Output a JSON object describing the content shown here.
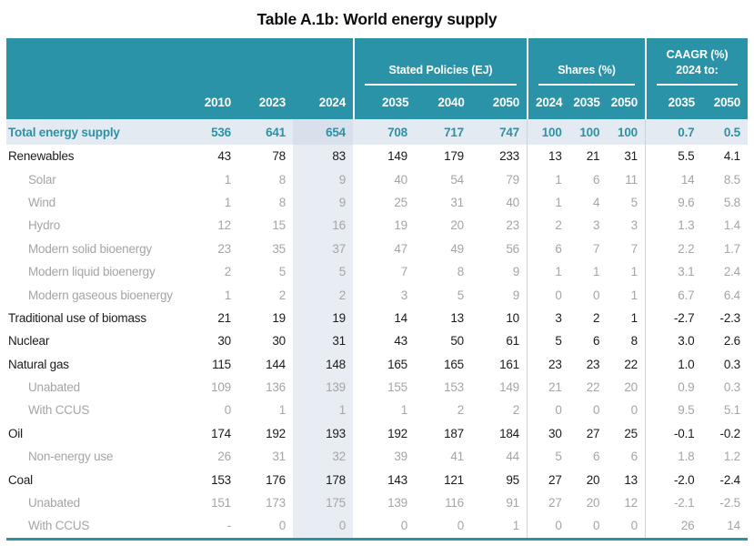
{
  "title": "Table A.1b: World energy supply",
  "colors": {
    "header_teal": "#2a93a8",
    "total_row_bg": "#e4eaf2",
    "col_2024_shade": "#e8ecf2",
    "sub_row_text": "#a5a5a5",
    "main_text": "#1b1b1b",
    "divider_gray": "#ccd3da"
  },
  "table": {
    "groups": {
      "stated_policies": "Stated Policies (EJ)",
      "shares": "Shares (%)",
      "caagr_line1": "CAAGR (%)",
      "caagr_line2": "2024 to:"
    },
    "columns": [
      "2010",
      "2023",
      "2024",
      "2035",
      "2040",
      "2050",
      "2024",
      "2035",
      "2050",
      "2035",
      "2050"
    ],
    "rows": [
      {
        "label": "Total energy supply",
        "style": "total",
        "values": [
          "536",
          "641",
          "654",
          "708",
          "717",
          "747",
          "100",
          "100",
          "100",
          "0.7",
          "0.5"
        ]
      },
      {
        "label": "Renewables",
        "style": "main",
        "values": [
          "43",
          "78",
          "83",
          "149",
          "179",
          "233",
          "13",
          "21",
          "31",
          "5.5",
          "4.1"
        ]
      },
      {
        "label": "Solar",
        "style": "sub",
        "values": [
          "1",
          "8",
          "9",
          "40",
          "54",
          "79",
          "1",
          "6",
          "11",
          "14",
          "8.5"
        ]
      },
      {
        "label": "Wind",
        "style": "sub",
        "values": [
          "1",
          "8",
          "9",
          "25",
          "31",
          "40",
          "1",
          "4",
          "5",
          "9.6",
          "5.8"
        ]
      },
      {
        "label": "Hydro",
        "style": "sub",
        "values": [
          "12",
          "15",
          "16",
          "19",
          "20",
          "23",
          "2",
          "3",
          "3",
          "1.3",
          "1.4"
        ]
      },
      {
        "label": "Modern solid bioenergy",
        "style": "sub",
        "values": [
          "23",
          "35",
          "37",
          "47",
          "49",
          "56",
          "6",
          "7",
          "7",
          "2.2",
          "1.7"
        ]
      },
      {
        "label": "Modern liquid bioenergy",
        "style": "sub",
        "values": [
          "2",
          "5",
          "5",
          "7",
          "8",
          "9",
          "1",
          "1",
          "1",
          "3.1",
          "2.4"
        ]
      },
      {
        "label": "Modern gaseous bioenergy",
        "style": "sub",
        "values": [
          "1",
          "2",
          "2",
          "3",
          "5",
          "9",
          "0",
          "0",
          "1",
          "6.7",
          "6.4"
        ]
      },
      {
        "label": "Traditional use of biomass",
        "style": "main",
        "values": [
          "21",
          "19",
          "19",
          "14",
          "13",
          "10",
          "3",
          "2",
          "1",
          "-2.7",
          "-2.3"
        ]
      },
      {
        "label": "Nuclear",
        "style": "main",
        "values": [
          "30",
          "30",
          "31",
          "43",
          "50",
          "61",
          "5",
          "6",
          "8",
          "3.0",
          "2.6"
        ]
      },
      {
        "label": "Natural gas",
        "style": "main",
        "values": [
          "115",
          "144",
          "148",
          "165",
          "165",
          "161",
          "23",
          "23",
          "22",
          "1.0",
          "0.3"
        ]
      },
      {
        "label": "Unabated",
        "style": "sub",
        "values": [
          "109",
          "136",
          "139",
          "155",
          "153",
          "149",
          "21",
          "22",
          "20",
          "0.9",
          "0.3"
        ]
      },
      {
        "label": "With CCUS",
        "style": "sub",
        "values": [
          "0",
          "1",
          "1",
          "1",
          "2",
          "2",
          "0",
          "0",
          "0",
          "9.5",
          "5.1"
        ]
      },
      {
        "label": "Oil",
        "style": "main",
        "values": [
          "174",
          "192",
          "193",
          "192",
          "187",
          "184",
          "30",
          "27",
          "25",
          "-0.1",
          "-0.2"
        ]
      },
      {
        "label": "Non-energy use",
        "style": "sub",
        "values": [
          "26",
          "31",
          "32",
          "39",
          "41",
          "44",
          "5",
          "6",
          "6",
          "1.8",
          "1.2"
        ]
      },
      {
        "label": "Coal",
        "style": "main",
        "values": [
          "153",
          "176",
          "178",
          "143",
          "121",
          "95",
          "27",
          "20",
          "13",
          "-2.0",
          "-2.4"
        ]
      },
      {
        "label": "Unabated",
        "style": "sub",
        "values": [
          "151",
          "173",
          "175",
          "139",
          "116",
          "91",
          "27",
          "20",
          "12",
          "-2.1",
          "-2.5"
        ]
      },
      {
        "label": "With CCUS",
        "style": "sub",
        "values": [
          "-",
          "0",
          "0",
          "0",
          "0",
          "1",
          "0",
          "0",
          "0",
          "26",
          "14"
        ]
      }
    ]
  }
}
